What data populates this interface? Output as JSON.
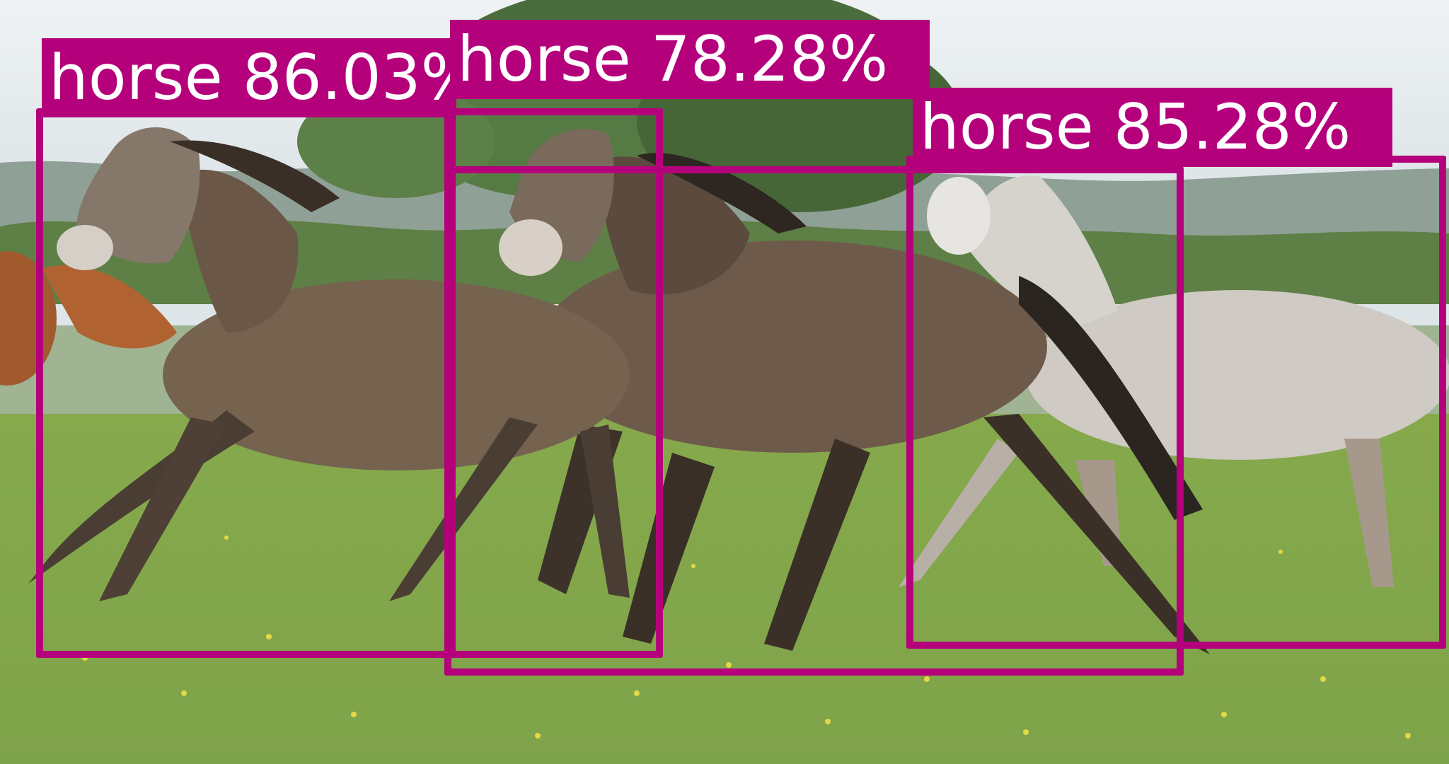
{
  "colors": {
    "box": "#b5007c",
    "label_text": "#ffffff"
  },
  "scene": {
    "subject": "horses galloping on grass"
  },
  "detections": [
    {
      "class": "horse",
      "confidence": "86.03%",
      "text": "horse 86.03%"
    },
    {
      "class": "horse",
      "confidence": "78.28%",
      "text": "horse 78.28%"
    },
    {
      "class": "horse",
      "confidence": "85.28%",
      "text": "horse 85.28%"
    }
  ]
}
